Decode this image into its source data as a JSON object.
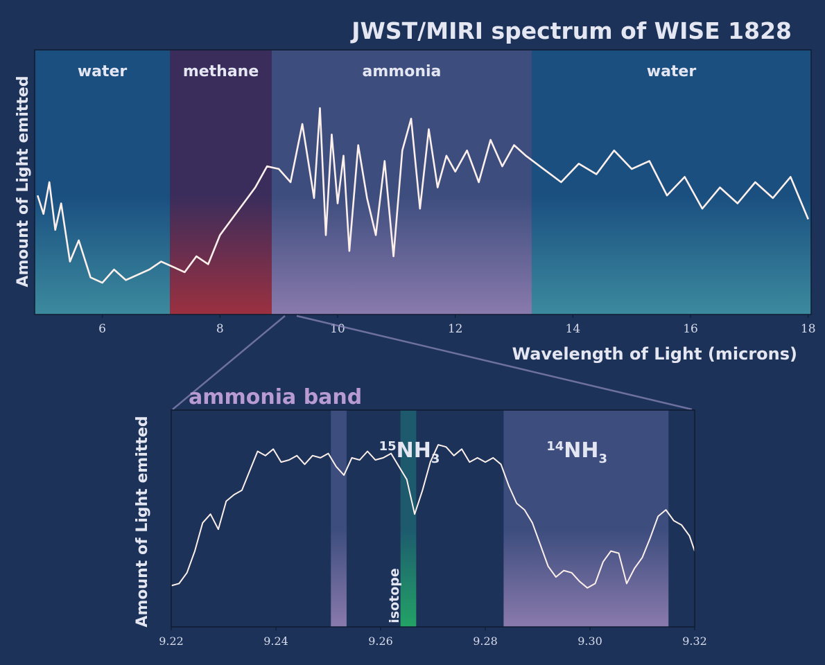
{
  "title": "JWST/MIRI spectrum of WISE 1828",
  "colors": {
    "background": "#1c3258",
    "spectrum_line": "#fdf0ea",
    "band_label": "#e4e6f2",
    "zoom_title": "#b89bd0",
    "water_top": "#1a4f80",
    "water_bottom": "#3c8a9e",
    "methane_top": "#3a2d5c",
    "methane_bottom": "#9b3040",
    "ammonia_top": "#3c4d7e",
    "ammonia_bottom": "#8a7aac",
    "isotope_top": "#1d5a6e",
    "isotope_bottom": "#23a366"
  },
  "chart_data": [
    {
      "type": "line",
      "title": "JWST/MIRI spectrum of WISE 1828",
      "xlabel": "Wavelength of Light  (microns)",
      "ylabel": "Amount of Light emitted",
      "xlim": [
        4.85,
        18.05
      ],
      "ylim": [
        0,
        1
      ],
      "yticks_shown": false,
      "xticks": [
        6,
        8,
        10,
        12,
        14,
        16,
        18
      ],
      "xtick_labels": [
        "6",
        "8",
        "10",
        "12",
        "14",
        "16",
        "18"
      ],
      "bands": [
        {
          "label": "water",
          "from": 4.85,
          "to": 7.15,
          "color_key": "water"
        },
        {
          "label": "methane",
          "from": 7.15,
          "to": 8.88,
          "color_key": "methane"
        },
        {
          "label": "ammonia",
          "from": 8.88,
          "to": 13.3,
          "color_key": "ammonia"
        },
        {
          "label": "water",
          "from": 13.3,
          "to": 18.05,
          "color_key": "water"
        }
      ],
      "series": [
        {
          "x": [
            4.9,
            5.0,
            5.1,
            5.2,
            5.3,
            5.45,
            5.6,
            5.8,
            6.0,
            6.2,
            6.4,
            6.6,
            6.8,
            7.0,
            7.2,
            7.4,
            7.6,
            7.8,
            8.0,
            8.2,
            8.4,
            8.6,
            8.8,
            9.0,
            9.2,
            9.4,
            9.6,
            9.7,
            9.8,
            9.9,
            10.0,
            10.1,
            10.2,
            10.35,
            10.5,
            10.65,
            10.8,
            10.95,
            11.1,
            11.25,
            11.4,
            11.55,
            11.7,
            11.85,
            12.0,
            12.2,
            12.4,
            12.6,
            12.8,
            13.0,
            13.2,
            13.5,
            13.8,
            14.1,
            14.4,
            14.7,
            15.0,
            15.3,
            15.6,
            15.9,
            16.2,
            16.5,
            16.8,
            17.1,
            17.4,
            17.7,
            18.0
          ],
          "y": [
            0.45,
            0.38,
            0.5,
            0.32,
            0.42,
            0.2,
            0.28,
            0.14,
            0.12,
            0.17,
            0.13,
            0.15,
            0.17,
            0.2,
            0.18,
            0.16,
            0.22,
            0.19,
            0.3,
            0.36,
            0.42,
            0.48,
            0.56,
            0.55,
            0.5,
            0.72,
            0.44,
            0.78,
            0.3,
            0.68,
            0.42,
            0.6,
            0.24,
            0.64,
            0.44,
            0.3,
            0.58,
            0.22,
            0.62,
            0.74,
            0.4,
            0.7,
            0.48,
            0.6,
            0.54,
            0.62,
            0.5,
            0.66,
            0.56,
            0.64,
            0.6,
            0.55,
            0.5,
            0.57,
            0.53,
            0.62,
            0.55,
            0.58,
            0.45,
            0.52,
            0.4,
            0.48,
            0.42,
            0.5,
            0.44,
            0.52,
            0.36
          ]
        }
      ]
    },
    {
      "type": "line",
      "title": "ammonia band",
      "ylabel": "Amount of Light emitted",
      "xlim": [
        9.22,
        9.32
      ],
      "ylim": [
        0,
        1
      ],
      "yticks_shown": false,
      "xticks": [
        9.22,
        9.24,
        9.26,
        9.28,
        9.3,
        9.32
      ],
      "xtick_labels": [
        "9.22",
        "9.24",
        "9.26",
        "9.28",
        "9.30",
        "9.32"
      ],
      "bands": [
        {
          "label": "",
          "from": 9.2505,
          "to": 9.2535,
          "color_key": "ammonia"
        },
        {
          "label": "isotope",
          "from": 9.2638,
          "to": 9.2668,
          "color_key": "isotope"
        },
        {
          "label": "14NH3",
          "from": 9.2835,
          "to": 9.315,
          "color_key": "ammonia"
        }
      ],
      "band_labels": [
        {
          "pre": "15",
          "base": "NH",
          "sub": "3",
          "x": 9.2655
        },
        {
          "pre": "14",
          "base": "NH",
          "sub": "3",
          "x": 9.2975
        }
      ],
      "series": [
        {
          "x": [
            9.22,
            9.2215,
            9.223,
            9.2245,
            9.226,
            9.2275,
            9.229,
            9.2305,
            9.232,
            9.2335,
            9.235,
            9.2365,
            9.238,
            9.2395,
            9.241,
            9.2425,
            9.244,
            9.2455,
            9.247,
            9.2485,
            9.25,
            9.2515,
            9.253,
            9.2545,
            9.256,
            9.2575,
            9.259,
            9.2605,
            9.262,
            9.2635,
            9.265,
            9.2665,
            9.268,
            9.2695,
            9.271,
            9.2725,
            9.274,
            9.2755,
            9.277,
            9.2785,
            9.28,
            9.2815,
            9.283,
            9.2845,
            9.286,
            9.2875,
            9.289,
            9.2905,
            9.292,
            9.2935,
            9.295,
            9.2965,
            9.298,
            9.2995,
            9.301,
            9.3025,
            9.304,
            9.3055,
            9.307,
            9.3085,
            9.31,
            9.3115,
            9.313,
            9.3145,
            9.316,
            9.3175,
            9.319,
            9.32
          ],
          "y": [
            0.19,
            0.2,
            0.25,
            0.35,
            0.48,
            0.52,
            0.45,
            0.58,
            0.61,
            0.63,
            0.72,
            0.81,
            0.79,
            0.82,
            0.76,
            0.77,
            0.79,
            0.75,
            0.79,
            0.78,
            0.8,
            0.74,
            0.7,
            0.78,
            0.77,
            0.81,
            0.77,
            0.78,
            0.8,
            0.74,
            0.68,
            0.52,
            0.63,
            0.76,
            0.84,
            0.83,
            0.79,
            0.82,
            0.76,
            0.78,
            0.76,
            0.78,
            0.75,
            0.65,
            0.57,
            0.54,
            0.48,
            0.38,
            0.28,
            0.23,
            0.26,
            0.25,
            0.21,
            0.18,
            0.2,
            0.3,
            0.35,
            0.34,
            0.2,
            0.27,
            0.32,
            0.41,
            0.51,
            0.54,
            0.49,
            0.47,
            0.42,
            0.35
          ]
        }
      ]
    }
  ]
}
